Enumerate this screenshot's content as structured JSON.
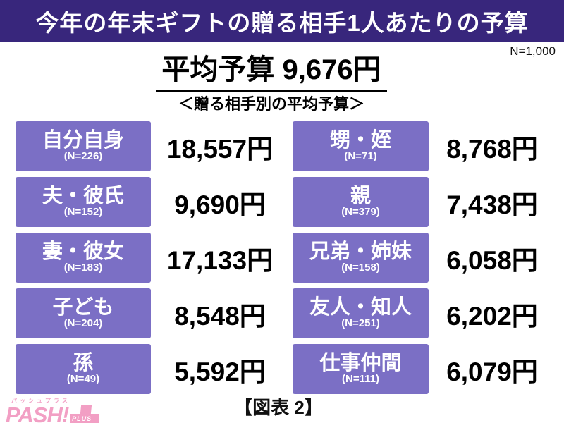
{
  "header": {
    "title": "今年の年末ギフトの贈る相手1人あたりの予算"
  },
  "sample_note": "N=1,000",
  "average_label": "平均予算 9,676円",
  "section_title": "＜贈る相手別の平均予算＞",
  "caption": "【図表 2】",
  "logo": {
    "kana": "パッシュプラス",
    "main": "PASH!",
    "plus": "PLUS"
  },
  "colors": {
    "header_bg": "#38267c",
    "box_bg": "#7b6fc5",
    "logo_pink": "#f29fc4",
    "text": "#111111"
  },
  "chart_data": {
    "type": "table",
    "title": "今年の年末ギフトの贈る相手1人あたりの予算",
    "subtitle": "＜贈る相手別の平均予算＞",
    "overall_average_label": "平均予算 9,676円",
    "overall_average_yen": 9676,
    "overall_sample": "N=1,000",
    "unit": "円",
    "rows": [
      {
        "label": "自分自身",
        "n": "(N=226)",
        "value": "18,557円",
        "value_yen": 18557
      },
      {
        "label": "夫・彼氏",
        "n": "(N=152)",
        "value": "9,690円",
        "value_yen": 9690
      },
      {
        "label": "妻・彼女",
        "n": "(N=183)",
        "value": "17,133円",
        "value_yen": 17133
      },
      {
        "label": "子ども",
        "n": "(N=204)",
        "value": "8,548円",
        "value_yen": 8548
      },
      {
        "label": "孫",
        "n": "(N=49)",
        "value": "5,592円",
        "value_yen": 5592
      },
      {
        "label": "甥・姪",
        "n": "(N=71)",
        "value": "8,768円",
        "value_yen": 8768
      },
      {
        "label": "親",
        "n": "(N=379)",
        "value": "7,438円",
        "value_yen": 7438
      },
      {
        "label": "兄弟・姉妹",
        "n": "(N=158)",
        "value": "6,058円",
        "value_yen": 6058
      },
      {
        "label": "友人・知人",
        "n": "(N=251)",
        "value": "6,202円",
        "value_yen": 6202
      },
      {
        "label": "仕事仲間",
        "n": "(N=111)",
        "value": "6,079円",
        "value_yen": 6079
      }
    ]
  }
}
